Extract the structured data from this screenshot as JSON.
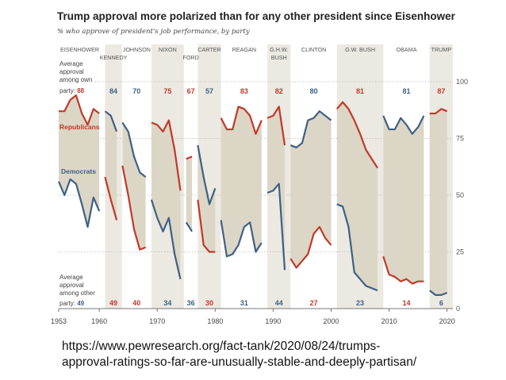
{
  "title": "Trump approval more polarized than for any other president since Eisenhower",
  "subtitle": "% who approve of president's job performance, by party",
  "source_url_line1": "https://www.pewresearch.org/fact-tank/2020/08/24/trumps-",
  "source_url_line2": "approval-ratings-so-far-are-unusually-stable-and-deeply-partisan/",
  "colors": {
    "republican": "#c0392b",
    "democrat": "#3e6084",
    "gap_fill": "#dcd6c6",
    "band": "#ebe9e1"
  },
  "chart_data": {
    "type": "line",
    "title": "Trump approval more polarized than for any other president since Eisenhower",
    "ylabel": "% who approve of president's job performance, by party",
    "xlim": [
      1953,
      2021
    ],
    "ylim": [
      0,
      100
    ],
    "x_ticks": [
      1953,
      1960,
      1970,
      1980,
      1990,
      2000,
      2010,
      2020
    ],
    "y_ticks": [
      0,
      25,
      50,
      75,
      100
    ],
    "series_labels": {
      "republicans": "Republicans",
      "democrats": "Democrats"
    },
    "own_party_label": [
      "Average",
      "approval",
      "among own",
      "party: 88"
    ],
    "other_party_label": [
      "Average",
      "approval",
      "among other",
      "party: 49"
    ],
    "presidents": [
      {
        "name": "EISENHOWER",
        "party": "R",
        "start": 1953,
        "end": 1961,
        "own_avg": "88",
        "other_avg": "49",
        "shaded": false,
        "rep": [
          [
            1953,
            87
          ],
          [
            1954,
            87
          ],
          [
            1955,
            92
          ],
          [
            1956,
            94
          ],
          [
            1957,
            86
          ],
          [
            1958,
            81
          ],
          [
            1959,
            88
          ],
          [
            1960,
            86
          ]
        ],
        "dem": [
          [
            1953,
            56
          ],
          [
            1954,
            50
          ],
          [
            1955,
            57
          ],
          [
            1956,
            55
          ],
          [
            1957,
            46
          ],
          [
            1958,
            36
          ],
          [
            1959,
            49
          ],
          [
            1960,
            43
          ]
        ]
      },
      {
        "name": "KENNEDY",
        "party": "D",
        "start": 1961,
        "end": 1963.9,
        "own_avg": "84",
        "other_avg": "49",
        "shaded": true,
        "rep": [
          [
            1961,
            58
          ],
          [
            1962,
            48
          ],
          [
            1963,
            39
          ]
        ],
        "dem": [
          [
            1961,
            87
          ],
          [
            1962,
            85
          ],
          [
            1963,
            78
          ]
        ]
      },
      {
        "name": "JOHNSON",
        "party": "D",
        "start": 1963.9,
        "end": 1969,
        "own_avg": "70",
        "other_avg": "40",
        "shaded": false,
        "rep": [
          [
            1964,
            63
          ],
          [
            1965,
            50
          ],
          [
            1966,
            35
          ],
          [
            1967,
            26
          ],
          [
            1968,
            27
          ]
        ],
        "dem": [
          [
            1964,
            82
          ],
          [
            1965,
            78
          ],
          [
            1966,
            67
          ],
          [
            1967,
            60
          ],
          [
            1968,
            58
          ]
        ]
      },
      {
        "name": "NIXON",
        "party": "R",
        "start": 1969,
        "end": 1974.6,
        "own_avg": "75",
        "other_avg": "34",
        "shaded": true,
        "rep": [
          [
            1969,
            82
          ],
          [
            1970,
            81
          ],
          [
            1971,
            78
          ],
          [
            1972,
            83
          ],
          [
            1973,
            70
          ],
          [
            1974,
            52
          ]
        ],
        "dem": [
          [
            1969,
            48
          ],
          [
            1970,
            40
          ],
          [
            1971,
            34
          ],
          [
            1972,
            40
          ],
          [
            1973,
            24
          ],
          [
            1974,
            13
          ]
        ]
      },
      {
        "name": "FORD",
        "party": "R",
        "start": 1974.6,
        "end": 1977,
        "own_avg": "67",
        "other_avg": "36",
        "shaded": false,
        "rep": [
          [
            1975,
            66
          ],
          [
            1976,
            67
          ]
        ],
        "dem": [
          [
            1975,
            38
          ],
          [
            1976,
            34
          ]
        ]
      },
      {
        "name": "CARTER",
        "party": "D",
        "start": 1977,
        "end": 1981,
        "own_avg": "57",
        "other_avg": "30",
        "shaded": true,
        "rep": [
          [
            1977,
            48
          ],
          [
            1978,
            28
          ],
          [
            1979,
            25
          ],
          [
            1980,
            25
          ]
        ],
        "dem": [
          [
            1977,
            72
          ],
          [
            1978,
            58
          ],
          [
            1979,
            46
          ],
          [
            1980,
            53
          ]
        ]
      },
      {
        "name": "REAGAN",
        "party": "R",
        "start": 1981,
        "end": 1989,
        "own_avg": "83",
        "other_avg": "31",
        "shaded": false,
        "rep": [
          [
            1981,
            84
          ],
          [
            1982,
            79
          ],
          [
            1983,
            79
          ],
          [
            1984,
            89
          ],
          [
            1985,
            88
          ],
          [
            1986,
            85
          ],
          [
            1987,
            77
          ],
          [
            1988,
            83
          ]
        ],
        "dem": [
          [
            1981,
            39
          ],
          [
            1982,
            23
          ],
          [
            1983,
            24
          ],
          [
            1984,
            28
          ],
          [
            1985,
            36
          ],
          [
            1986,
            38
          ],
          [
            1987,
            25
          ],
          [
            1988,
            29
          ]
        ]
      },
      {
        "name": "G.H.W. BUSH",
        "party": "R",
        "start": 1989,
        "end": 1993,
        "own_avg": "82",
        "other_avg": "44",
        "shaded": true,
        "rep": [
          [
            1989,
            84
          ],
          [
            1990,
            85
          ],
          [
            1991,
            89
          ],
          [
            1992,
            72
          ]
        ],
        "dem": [
          [
            1989,
            51
          ],
          [
            1990,
            52
          ],
          [
            1991,
            55
          ],
          [
            1992,
            17
          ]
        ]
      },
      {
        "name": "CLINTON",
        "party": "D",
        "start": 1993,
        "end": 2001,
        "own_avg": "80",
        "other_avg": "27",
        "shaded": false,
        "rep": [
          [
            1993,
            22
          ],
          [
            1994,
            18
          ],
          [
            1995,
            21
          ],
          [
            1996,
            24
          ],
          [
            1997,
            33
          ],
          [
            1998,
            36
          ],
          [
            1999,
            31
          ],
          [
            2000,
            28
          ]
        ],
        "dem": [
          [
            1993,
            72
          ],
          [
            1994,
            71
          ],
          [
            1995,
            73
          ],
          [
            1996,
            83
          ],
          [
            1997,
            84
          ],
          [
            1998,
            87
          ],
          [
            1999,
            85
          ],
          [
            2000,
            83
          ]
        ]
      },
      {
        "name": "G.W. BUSH",
        "party": "R",
        "start": 2001,
        "end": 2009,
        "own_avg": "81",
        "other_avg": "23",
        "shaded": true,
        "rep": [
          [
            2001,
            88
          ],
          [
            2002,
            91
          ],
          [
            2003,
            88
          ],
          [
            2004,
            83
          ],
          [
            2005,
            77
          ],
          [
            2006,
            70
          ],
          [
            2007,
            66
          ],
          [
            2008,
            62
          ]
        ],
        "dem": [
          [
            2001,
            46
          ],
          [
            2002,
            45
          ],
          [
            2003,
            36
          ],
          [
            2004,
            16
          ],
          [
            2005,
            13
          ],
          [
            2006,
            10
          ],
          [
            2007,
            9
          ],
          [
            2008,
            8
          ]
        ]
      },
      {
        "name": "OBAMA",
        "party": "D",
        "start": 2009,
        "end": 2017,
        "own_avg": "81",
        "other_avg": "14",
        "shaded": false,
        "rep": [
          [
            2009,
            23
          ],
          [
            2010,
            15
          ],
          [
            2011,
            14
          ],
          [
            2012,
            12
          ],
          [
            2013,
            13
          ],
          [
            2014,
            11
          ],
          [
            2015,
            12
          ],
          [
            2016,
            12
          ]
        ],
        "dem": [
          [
            2009,
            85
          ],
          [
            2010,
            79
          ],
          [
            2011,
            79
          ],
          [
            2012,
            84
          ],
          [
            2013,
            81
          ],
          [
            2014,
            77
          ],
          [
            2015,
            80
          ],
          [
            2016,
            85
          ]
        ]
      },
      {
        "name": "TRUMP",
        "party": "R",
        "start": 2017,
        "end": 2021,
        "own_avg": "87",
        "other_avg": "6",
        "shaded": true,
        "rep": [
          [
            2017,
            86
          ],
          [
            2018,
            86
          ],
          [
            2019,
            88
          ],
          [
            2020,
            87
          ]
        ],
        "dem": [
          [
            2017,
            8
          ],
          [
            2018,
            6
          ],
          [
            2019,
            6
          ],
          [
            2020,
            7
          ]
        ]
      }
    ]
  }
}
